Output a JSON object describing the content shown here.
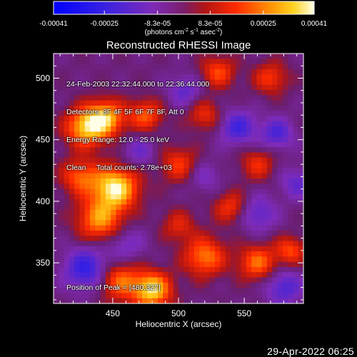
{
  "chart_data": {
    "type": "heatmap",
    "title": "Reconstructed RHESSI Image",
    "xlabel": "Heliocentric X (arcsec)",
    "ylabel": "Heliocentric Y (arcsec)",
    "xlim": [
      405,
      595
    ],
    "ylim": [
      317,
      520
    ],
    "x_ticks": [
      {
        "value": 450,
        "label": "450"
      },
      {
        "value": 500,
        "label": "500"
      },
      {
        "value": 550,
        "label": "550"
      }
    ],
    "y_ticks": [
      {
        "value": 350,
        "label": "350"
      },
      {
        "value": 400,
        "label": "400"
      },
      {
        "value": 450,
        "label": "450"
      },
      {
        "value": 500,
        "label": "500"
      }
    ],
    "colorbar": {
      "min": -0.00041,
      "max": 0.00041,
      "ticks": [
        {
          "value": -0.00041,
          "label": "-0.00041"
        },
        {
          "value": -0.00025,
          "label": "-0.00025"
        },
        {
          "value": -8.3e-05,
          "label": "-8.3e-05"
        },
        {
          "value": 8.3e-05,
          "label": "8.3e-05"
        },
        {
          "value": 0.00025,
          "label": "0.00025"
        },
        {
          "value": 0.00041,
          "label": "0.00041"
        }
      ],
      "unit_main": "(photons cm",
      "unit_exp1": "-2",
      "unit_mid": " s",
      "unit_exp2": "-1",
      "unit_mid2": " asec",
      "unit_exp3": "-2",
      "unit_end": ")"
    },
    "blobs": [
      {
        "x": 452,
        "y": 411,
        "amp": 1.0,
        "r": 12
      },
      {
        "x": 430,
        "y": 460,
        "amp": 0.85,
        "r": 11
      },
      {
        "x": 445,
        "y": 468,
        "amp": 0.75,
        "r": 10
      },
      {
        "x": 475,
        "y": 470,
        "amp": 0.55,
        "r": 9
      },
      {
        "x": 480,
        "y": 328,
        "amp": 0.95,
        "r": 10
      },
      {
        "x": 455,
        "y": 335,
        "amp": 0.6,
        "r": 11
      },
      {
        "x": 440,
        "y": 385,
        "amp": 0.7,
        "r": 12
      },
      {
        "x": 425,
        "y": 420,
        "amp": 0.55,
        "r": 10
      },
      {
        "x": 520,
        "y": 355,
        "amp": 0.65,
        "r": 11
      },
      {
        "x": 560,
        "y": 350,
        "amp": 0.6,
        "r": 10
      },
      {
        "x": 540,
        "y": 395,
        "amp": 0.45,
        "r": 9
      },
      {
        "x": 500,
        "y": 430,
        "amp": 0.45,
        "r": 10
      },
      {
        "x": 520,
        "y": 470,
        "amp": 0.4,
        "r": 9
      },
      {
        "x": 560,
        "y": 430,
        "amp": 0.4,
        "r": 9
      },
      {
        "x": 530,
        "y": 505,
        "amp": 0.5,
        "r": 9
      },
      {
        "x": 570,
        "y": 500,
        "amp": 0.45,
        "r": 9
      },
      {
        "x": 585,
        "y": 360,
        "amp": 0.5,
        "r": 8
      },
      {
        "x": 500,
        "y": 380,
        "amp": 0.35,
        "r": 9
      },
      {
        "x": 430,
        "y": 345,
        "amp": -0.6,
        "r": 12
      },
      {
        "x": 460,
        "y": 365,
        "amp": -0.3,
        "r": 10
      },
      {
        "x": 545,
        "y": 460,
        "amp": -0.5,
        "r": 10
      },
      {
        "x": 575,
        "y": 455,
        "amp": -0.45,
        "r": 9
      },
      {
        "x": 560,
        "y": 390,
        "amp": -0.4,
        "r": 10
      },
      {
        "x": 580,
        "y": 330,
        "amp": -0.45,
        "r": 10
      },
      {
        "x": 505,
        "y": 490,
        "amp": -0.35,
        "r": 9
      },
      {
        "x": 470,
        "y": 440,
        "amp": -0.3,
        "r": 9
      },
      {
        "x": 590,
        "y": 415,
        "amp": -0.35,
        "r": 9
      },
      {
        "x": 520,
        "y": 420,
        "amp": -0.25,
        "r": 9
      }
    ]
  },
  "annotations": {
    "time_range": "24-Feb-2003 22:32:44.000 to 22:36:44.000",
    "detectors": "Detectors: 3F 4F 5F 6F 7F 8F, Att 0",
    "energy_range": "Energy Range: 12.0 - 25.0 keV",
    "clean_label": "Clean",
    "total_counts": "Total counts: 2.78e+03",
    "peak_position": "Position of Peak = [480,327]"
  },
  "footer": {
    "date": "29-Apr-2022 06:25"
  }
}
